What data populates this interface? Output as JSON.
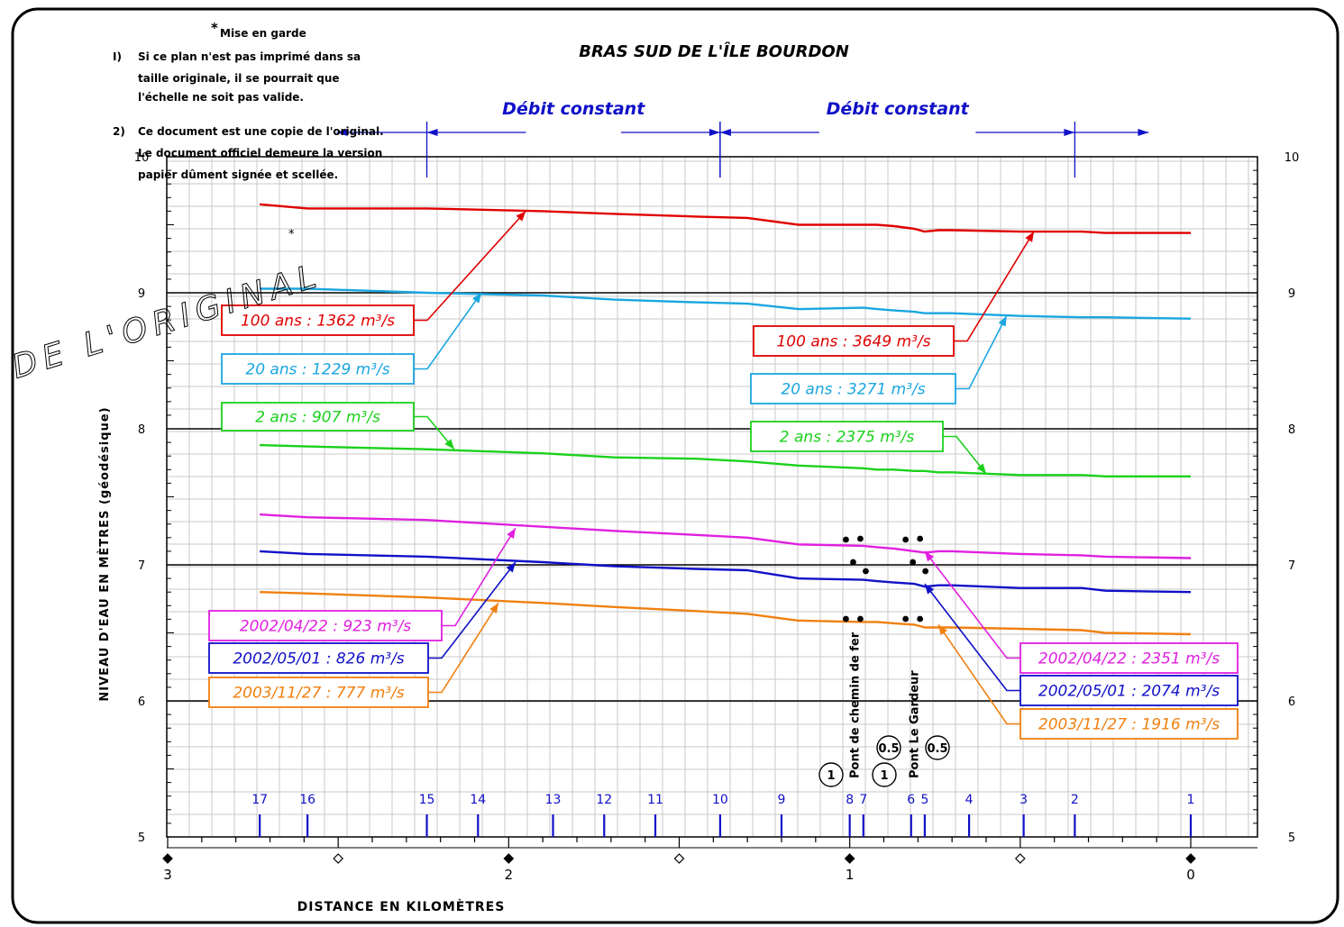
{
  "chart_data": {
    "type": "line",
    "title": "BRAS SUD DE L'ÎLE BOURDON",
    "xlabel": "DISTANCE EN KILOMÈTRES",
    "ylabel": "NIVEAU D'EAU EN MÈTRES (géodésique)",
    "xlim": [
      3.0,
      -0.05
    ],
    "ylim": [
      5,
      10
    ],
    "x_ticks": [
      "3",
      "2",
      "1",
      "0"
    ],
    "y_ticks": [
      "5",
      "6",
      "7",
      "8",
      "9",
      "10"
    ],
    "grid": true,
    "x": [
      2.73,
      2.59,
      2.24,
      1.9,
      1.69,
      1.45,
      1.3,
      1.15,
      0.96,
      0.92,
      0.87,
      0.81,
      0.78,
      0.74,
      0.7,
      0.5,
      0.32,
      0.25,
      0
    ],
    "series": [
      {
        "name": "100 ans",
        "color": "#e00000",
        "values": [
          9.65,
          9.62,
          9.62,
          9.6,
          9.58,
          9.56,
          9.55,
          9.5,
          9.5,
          9.5,
          9.49,
          9.47,
          9.45,
          9.46,
          9.46,
          9.45,
          9.45,
          9.44,
          9.44
        ]
      },
      {
        "name": "20 ans",
        "color": "#1aa6e0",
        "values": [
          9.03,
          9.03,
          9.0,
          8.98,
          8.95,
          8.93,
          8.92,
          8.88,
          8.89,
          8.88,
          8.87,
          8.86,
          8.85,
          8.85,
          8.85,
          8.83,
          8.82,
          8.82,
          8.81
        ]
      },
      {
        "name": "2 ans",
        "color": "#1bd11b",
        "values": [
          7.88,
          7.87,
          7.85,
          7.82,
          7.79,
          7.78,
          7.76,
          7.73,
          7.71,
          7.7,
          7.7,
          7.69,
          7.69,
          7.68,
          7.68,
          7.66,
          7.66,
          7.65,
          7.65
        ]
      },
      {
        "name": "2002/04/22",
        "color": "#e020e0",
        "values": [
          7.37,
          7.35,
          7.33,
          7.28,
          7.25,
          7.22,
          7.2,
          7.15,
          7.14,
          7.13,
          7.12,
          7.1,
          7.09,
          7.1,
          7.1,
          7.08,
          7.07,
          7.06,
          7.05
        ]
      },
      {
        "name": "2002/05/01",
        "color": "#1010c8",
        "values": [
          7.1,
          7.08,
          7.06,
          7.02,
          6.99,
          6.97,
          6.96,
          6.9,
          6.89,
          6.88,
          6.87,
          6.86,
          6.84,
          6.85,
          6.85,
          6.83,
          6.83,
          6.81,
          6.8
        ]
      },
      {
        "name": "2003/11/27",
        "color": "#f08010",
        "values": [
          6.8,
          6.79,
          6.76,
          6.72,
          6.69,
          6.66,
          6.64,
          6.59,
          6.58,
          6.58,
          6.57,
          6.56,
          6.54,
          6.54,
          6.54,
          6.53,
          6.52,
          6.5,
          6.49
        ]
      }
    ],
    "labels": [
      {
        "text": "100 ans : 1362 m³/s",
        "color": "#e00000",
        "target": [
          1.95,
          9.6
        ]
      },
      {
        "text": "20 ans : 1229 m³/s",
        "color": "#1aa6e0",
        "target": [
          2.08,
          9.0
        ]
      },
      {
        "text": "2 ans : 907 m³/s",
        "color": "#1bd11b",
        "target": [
          2.16,
          7.85
        ]
      },
      {
        "text": "100 ans : 3649 m³/s",
        "color": "#e00000",
        "target": [
          0.46,
          9.45
        ]
      },
      {
        "text": "20 ans : 3271 m³/s",
        "color": "#1aa6e0",
        "target": [
          0.54,
          8.83
        ]
      },
      {
        "text": "2 ans : 2375 m³/s",
        "color": "#1bd11b",
        "target": [
          0.6,
          7.67
        ]
      },
      {
        "text": "2002/04/22 : 923 m³/s",
        "color": "#e020e0",
        "target": [
          1.98,
          7.27
        ]
      },
      {
        "text": "2002/05/01 : 826 m³/s",
        "color": "#1010c8",
        "target": [
          1.98,
          7.02
        ]
      },
      {
        "text": "2003/11/27 : 777 m³/s",
        "color": "#f08010",
        "target": [
          2.03,
          6.72
        ]
      },
      {
        "text": "2002/04/22 : 2351 m³/s",
        "color": "#e020e0",
        "target": [
          0.78,
          7.1
        ]
      },
      {
        "text": "2002/05/01 : 2074 m³/s",
        "color": "#1010c8",
        "target": [
          0.78,
          6.86
        ]
      },
      {
        "text": "2003/11/27 : 1916 m³/s",
        "color": "#f08010",
        "target": [
          0.74,
          6.56
        ]
      }
    ],
    "sections": [
      {
        "label": "17",
        "x": 2.73
      },
      {
        "label": "16",
        "x": 2.59
      },
      {
        "label": "15",
        "x": 2.24
      },
      {
        "label": "14",
        "x": 2.09
      },
      {
        "label": "13",
        "x": 1.87
      },
      {
        "label": "12",
        "x": 1.72
      },
      {
        "label": "11",
        "x": 1.57
      },
      {
        "label": "10",
        "x": 1.38
      },
      {
        "label": "9",
        "x": 1.2
      },
      {
        "label": "8",
        "x": 1.0
      },
      {
        "label": "7",
        "x": 0.96
      },
      {
        "label": "6",
        "x": 0.82
      },
      {
        "label": "5",
        "x": 0.78
      },
      {
        "label": "4",
        "x": 0.65
      },
      {
        "label": "3",
        "x": 0.49
      },
      {
        "label": "2",
        "x": 0.34
      },
      {
        "label": "1",
        "x": 0.0
      }
    ],
    "debit_constant": {
      "label": "Débit constant",
      "color": "#1010c8",
      "segments": [
        [
          2.24,
          1.38
        ],
        [
          1.38,
          0.34
        ]
      ]
    },
    "bridges": [
      {
        "label": "Pont de chemin de fer",
        "badges": [
          "1",
          "1"
        ]
      },
      {
        "label": "Pont Le Gardeur",
        "badges": [
          "0.5",
          "0.5"
        ]
      }
    ]
  },
  "notes": {
    "header": "Mise en garde",
    "asterisk": "*",
    "item1": [
      "I)",
      "Si ce plan n'est pas imprimé dans sa",
      "taille originale, il se pourrait que",
      "l'échelle ne soit pas valide."
    ],
    "item2": [
      "2)",
      "Ce document est une copie de l'original.",
      "Le document officiel demeure la version",
      "papier dûment signée et scellée."
    ]
  },
  "watermark": "DE L'ORIGINAL"
}
